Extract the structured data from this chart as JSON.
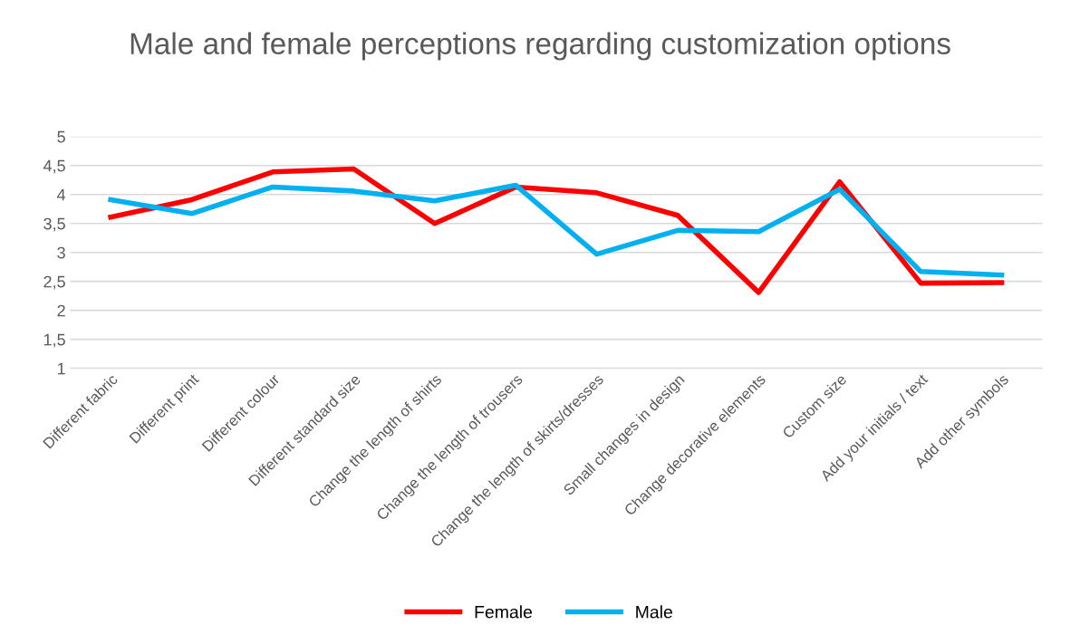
{
  "chart_data": {
    "type": "line",
    "title": "Male and female perceptions regarding customization options",
    "categories": [
      "Different fabric",
      "Different print",
      "Different colour",
      "Different standard size",
      "Change the length of shirts",
      "Change the length of trousers",
      "Change the length of skirts/dresses",
      "Small changes in design",
      "Change decorative elements",
      "Custom size",
      "Add your initials / text",
      "Add other symbols"
    ],
    "series": [
      {
        "name": "Female",
        "color": "#ff0000",
        "values": [
          3.61,
          3.91,
          4.39,
          4.44,
          3.5,
          4.13,
          4.03,
          3.64,
          2.31,
          4.22,
          2.47,
          2.48
        ]
      },
      {
        "name": "Male",
        "color": "#00b0f0",
        "values": [
          3.91,
          3.67,
          4.13,
          4.06,
          3.89,
          4.16,
          2.97,
          3.38,
          3.36,
          4.09,
          2.67,
          2.61
        ]
      }
    ],
    "ylim": [
      1,
      5
    ],
    "yticks": [
      1,
      {
        "value": 1.5,
        "label": "1,5"
      },
      2,
      {
        "value": 2.5,
        "label": "2,5"
      },
      3,
      {
        "value": 3.5,
        "label": "3,5"
      },
      4,
      {
        "value": 4.5,
        "label": "4,5"
      },
      5
    ],
    "grid": "y",
    "legend": "bottom",
    "marker": "none",
    "line_style": "solid"
  }
}
